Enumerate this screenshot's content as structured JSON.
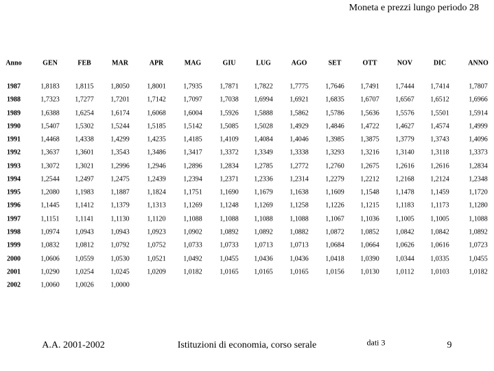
{
  "header": {
    "title": "Moneta e prezzi lungo periodo  28"
  },
  "table": {
    "columns": [
      "Anno",
      "GEN",
      "FEB",
      "MAR",
      "APR",
      "MAG",
      "GIU",
      "LUG",
      "AGO",
      "SET",
      "OTT",
      "NOV",
      "DIC",
      "ANNO"
    ],
    "rows": [
      [
        "1987",
        "1,8183",
        "1,8115",
        "1,8050",
        "1,8001",
        "1,7935",
        "1,7871",
        "1,7822",
        "1,7775",
        "1,7646",
        "1,7491",
        "1,7444",
        "1,7414",
        "1,7807"
      ],
      [
        "1988",
        "1,7323",
        "1,7277",
        "1,7201",
        "1,7142",
        "1,7097",
        "1,7038",
        "1,6994",
        "1,6921",
        "1,6835",
        "1,6707",
        "1,6567",
        "1,6512",
        "1,6966"
      ],
      [
        "1989",
        "1,6388",
        "1,6254",
        "1,6174",
        "1,6068",
        "1,6004",
        "1,5926",
        "1,5888",
        "1,5862",
        "1,5786",
        "1,5636",
        "1,5576",
        "1,5501",
        "1,5914"
      ],
      [
        "1990",
        "1,5407",
        "1,5302",
        "1,5244",
        "1,5185",
        "1,5142",
        "1,5085",
        "1,5028",
        "1,4929",
        "1,4846",
        "1,4722",
        "1,4627",
        "1,4574",
        "1,4999"
      ],
      [
        "1991",
        "1,4468",
        "1,4338",
        "1,4299",
        "1,4235",
        "1,4185",
        "1,4109",
        "1,4084",
        "1,4046",
        "1,3985",
        "1,3875",
        "1,3779",
        "1,3743",
        "1,4096"
      ],
      [
        "1992",
        "1,3637",
        "1,3601",
        "1,3543",
        "1,3486",
        "1,3417",
        "1,3372",
        "1,3349",
        "1,3338",
        "1,3293",
        "1,3216",
        "1,3140",
        "1,3118",
        "1,3373"
      ],
      [
        "1993",
        "1,3072",
        "1,3021",
        "1,2996",
        "1,2946",
        "1,2896",
        "1,2834",
        "1,2785",
        "1,2772",
        "1,2760",
        "1,2675",
        "1,2616",
        "1,2616",
        "1,2834"
      ],
      [
        "1994",
        "1,2544",
        "1,2497",
        "1,2475",
        "1,2439",
        "1,2394",
        "1,2371",
        "1,2336",
        "1,2314",
        "1,2279",
        "1,2212",
        "1,2168",
        "1,2124",
        "1,2348"
      ],
      [
        "1995",
        "1,2080",
        "1,1983",
        "1,1887",
        "1,1824",
        "1,1751",
        "1,1690",
        "1,1679",
        "1,1638",
        "1,1609",
        "1,1548",
        "1,1478",
        "1,1459",
        "1,1720"
      ],
      [
        "1996",
        "1,1445",
        "1,1412",
        "1,1379",
        "1,1313",
        "1,1269",
        "1,1248",
        "1,1269",
        "1,1258",
        "1,1226",
        "1,1215",
        "1,1183",
        "1,1173",
        "1,1280"
      ],
      [
        "1997",
        "1,1151",
        "1,1141",
        "1,1130",
        "1,1120",
        "1,1088",
        "1,1088",
        "1,1088",
        "1,1088",
        "1,1067",
        "1,1036",
        "1,1005",
        "1,1005",
        "1,1088"
      ],
      [
        "1998",
        "1,0974",
        "1,0943",
        "1,0943",
        "1,0923",
        "1,0902",
        "1,0892",
        "1,0892",
        "1,0882",
        "1,0872",
        "1,0852",
        "1,0842",
        "1,0842",
        "1,0892"
      ],
      [
        "1999",
        "1,0832",
        "1,0812",
        "1,0792",
        "1,0752",
        "1,0733",
        "1,0733",
        "1,0713",
        "1,0713",
        "1,0684",
        "1,0664",
        "1,0626",
        "1,0616",
        "1,0723"
      ],
      [
        "2000",
        "1,0606",
        "1,0559",
        "1,0530",
        "1,0521",
        "1,0492",
        "1,0455",
        "1,0436",
        "1,0436",
        "1,0418",
        "1,0390",
        "1,0344",
        "1,0335",
        "1,0455"
      ],
      [
        "2001",
        "1,0290",
        "1,0254",
        "1,0245",
        "1,0209",
        "1,0182",
        "1,0165",
        "1,0165",
        "1,0165",
        "1,0156",
        "1,0130",
        "1,0112",
        "1,0103",
        "1,0182"
      ],
      [
        "2002",
        "1,0060",
        "1,0026",
        "1,0000"
      ]
    ]
  },
  "footer": {
    "course_year": "A.A. 2001-2002",
    "course": "Istituzioni di economia, corso serale",
    "source": "dati 3",
    "page": "9"
  }
}
